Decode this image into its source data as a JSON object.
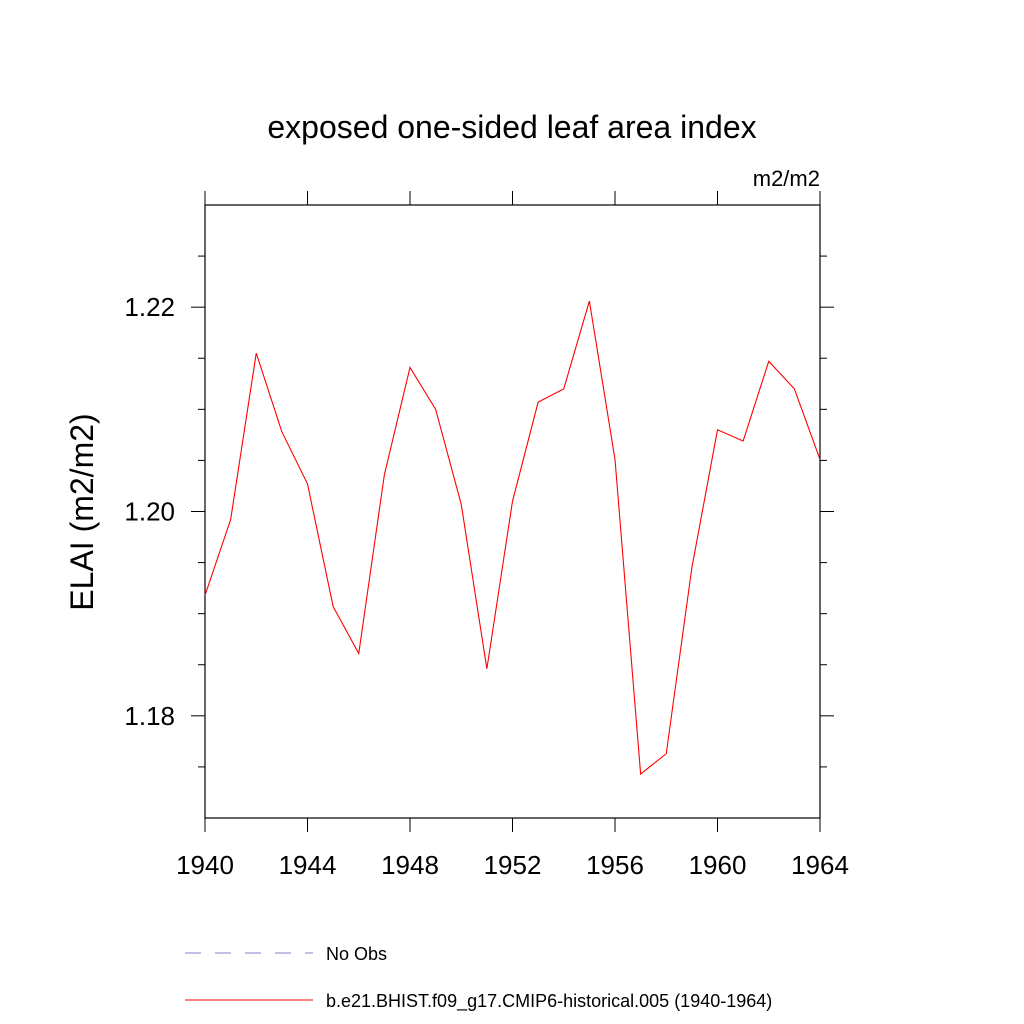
{
  "chart_data": {
    "type": "line",
    "title": "exposed one-sided leaf area index",
    "units_label": "m2/m2",
    "ylabel": "ELAI  (m2/m2)",
    "xlabel": "",
    "xlim": [
      1940,
      1964
    ],
    "ylim": [
      1.17,
      1.23
    ],
    "x_ticks": [
      "1940",
      "1944",
      "1948",
      "1952",
      "1956",
      "1960",
      "1964"
    ],
    "y_ticks": [
      "1.18",
      "1.20",
      "1.22"
    ],
    "grid": false,
    "legend_position": "bottom",
    "series": [
      {
        "name": "b.e21.BHIST.f09_g17.CMIP6-historical.005 (1940-1964)",
        "color": "#ff0000",
        "style": "solid",
        "x": [
          1940,
          1941,
          1942,
          1943,
          1944,
          1945,
          1946,
          1947,
          1948,
          1949,
          1950,
          1951,
          1952,
          1953,
          1954,
          1955,
          1956,
          1957,
          1958,
          1959,
          1960,
          1961,
          1962,
          1963,
          1964
        ],
        "values": [
          1.1918,
          1.1992,
          1.2155,
          1.2078,
          1.2027,
          1.1907,
          1.1861,
          1.2036,
          1.2141,
          1.21,
          1.2007,
          1.1846,
          1.201,
          1.2107,
          1.212,
          1.2206,
          1.2051,
          1.1743,
          1.1763,
          1.1945,
          1.208,
          1.2069,
          1.2147,
          1.212,
          1.2051
        ]
      }
    ],
    "legend": [
      {
        "label": "No Obs",
        "color": "#8080c0",
        "style": "dashed"
      },
      {
        "label": "b.e21.BHIST.f09_g17.CMIP6-historical.005 (1940-1964)",
        "color": "#ff0000",
        "style": "solid"
      }
    ]
  }
}
